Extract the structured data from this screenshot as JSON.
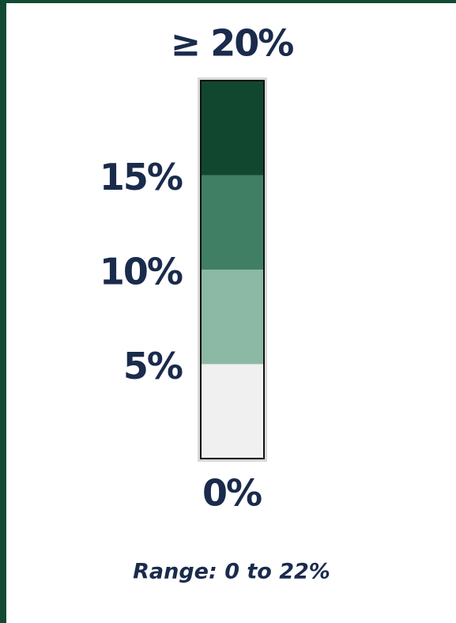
{
  "legend": {
    "top_label": "≥ 20%",
    "ticks": [
      "15%",
      "10%",
      "5%"
    ],
    "bottom_label": "0%",
    "colors": [
      "#12472f",
      "#417f65",
      "#8bb9a5",
      "#f0f0f0"
    ],
    "range_note": "Range: 0 to 22%"
  }
}
